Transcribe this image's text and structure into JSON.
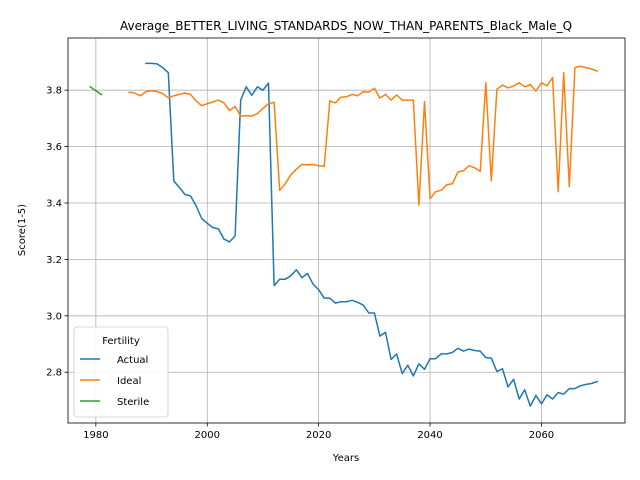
{
  "chart_data": {
    "type": "line",
    "title": "Average_BETTER_LIVING_STANDARDS_NOW_THAN_PARENTS_Black_Male_Q",
    "xlabel": "Years",
    "ylabel": "Score(1-5)",
    "xlim": [
      1975,
      2075
    ],
    "ylim": [
      2.62,
      3.985
    ],
    "x_ticks": [
      1980,
      2000,
      2020,
      2040,
      2060
    ],
    "x_tick_labels": [
      "1980",
      "2000",
      "2020",
      "2040",
      "2060"
    ],
    "y_ticks": [
      2.8,
      3.0,
      3.2,
      3.4,
      3.6,
      3.8
    ],
    "y_tick_labels": [
      "2.8",
      "3.0",
      "3.2",
      "3.4",
      "3.6",
      "3.8"
    ],
    "grid": true,
    "legend": {
      "title": "Fertility",
      "placement": "lower-left"
    },
    "series": [
      {
        "name": "Actual",
        "color": "#1f77b4",
        "x": [
          1989,
          1990,
          1991,
          1992,
          1993,
          1994,
          1995,
          1996,
          1997,
          1998,
          1999,
          2000,
          2001,
          2002,
          2003,
          2004,
          2005,
          2006,
          2007,
          2008,
          2009,
          2010,
          2011,
          2012,
          2013,
          2014,
          2015,
          2016,
          2017,
          2018,
          2019,
          2020,
          2021,
          2022,
          2023,
          2024,
          2025,
          2026,
          2027,
          2028,
          2029,
          2030,
          2031,
          2032,
          2033,
          2034,
          2035,
          2036,
          2037,
          2038,
          2039,
          2040,
          2041,
          2042,
          2043,
          2044,
          2045,
          2046,
          2047,
          2048,
          2049,
          2050,
          2051,
          2052,
          2053,
          2054,
          2055,
          2056,
          2057,
          2058,
          2059,
          2060,
          2061,
          2062,
          2063,
          2064,
          2065,
          2066,
          2067,
          2068,
          2069,
          2070
        ],
        "values": [
          3.895,
          3.895,
          3.893,
          3.88,
          3.862,
          3.478,
          3.455,
          3.43,
          3.425,
          3.39,
          3.345,
          3.328,
          3.313,
          3.308,
          3.272,
          3.262,
          3.283,
          3.765,
          3.812,
          3.782,
          3.812,
          3.8,
          3.825,
          3.107,
          3.13,
          3.13,
          3.142,
          3.163,
          3.135,
          3.15,
          3.112,
          3.093,
          3.063,
          3.063,
          3.045,
          3.05,
          3.05,
          3.055,
          3.048,
          3.038,
          3.01,
          3.01,
          2.928,
          2.942,
          2.845,
          2.865,
          2.795,
          2.825,
          2.787,
          2.83,
          2.81,
          2.848,
          2.848,
          2.865,
          2.865,
          2.87,
          2.885,
          2.875,
          2.882,
          2.877,
          2.875,
          2.852,
          2.85,
          2.803,
          2.812,
          2.748,
          2.775,
          2.705,
          2.738,
          2.68,
          2.718,
          2.688,
          2.72,
          2.705,
          2.728,
          2.722,
          2.742,
          2.742,
          2.752,
          2.757,
          2.76,
          2.767
        ]
      },
      {
        "name": "Ideal",
        "color": "#ff7f0e",
        "x": [
          1986,
          1987,
          1988,
          1989,
          1990,
          1991,
          1992,
          1993,
          1994,
          1995,
          1996,
          1997,
          1998,
          1999,
          2000,
          2001,
          2002,
          2003,
          2004,
          2005,
          2006,
          2007,
          2008,
          2009,
          2010,
          2011,
          2012,
          2013,
          2014,
          2015,
          2016,
          2017,
          2018,
          2019,
          2020,
          2021,
          2022,
          2023,
          2024,
          2025,
          2026,
          2027,
          2028,
          2029,
          2030,
          2031,
          2032,
          2033,
          2034,
          2035,
          2036,
          2037,
          2038,
          2039,
          2040,
          2041,
          2042,
          2043,
          2044,
          2045,
          2046,
          2047,
          2048,
          2049,
          2050,
          2051,
          2052,
          2053,
          2054,
          2055,
          2056,
          2057,
          2058,
          2059,
          2060,
          2061,
          2062,
          2063,
          2064,
          2065,
          2066,
          2067,
          2068,
          2069,
          2070
        ],
        "values": [
          3.793,
          3.79,
          3.78,
          3.795,
          3.798,
          3.795,
          3.788,
          3.773,
          3.78,
          3.785,
          3.79,
          3.785,
          3.762,
          3.745,
          3.752,
          3.758,
          3.765,
          3.755,
          3.728,
          3.742,
          3.708,
          3.71,
          3.708,
          3.717,
          3.735,
          3.752,
          3.757,
          3.445,
          3.468,
          3.5,
          3.52,
          3.537,
          3.535,
          3.537,
          3.532,
          3.53,
          3.762,
          3.755,
          3.775,
          3.777,
          3.785,
          3.78,
          3.795,
          3.793,
          3.807,
          3.772,
          3.785,
          3.765,
          3.783,
          3.765,
          3.765,
          3.765,
          3.393,
          3.76,
          3.415,
          3.44,
          3.445,
          3.465,
          3.468,
          3.51,
          3.515,
          3.532,
          3.525,
          3.512,
          3.826,
          3.478,
          3.803,
          3.818,
          3.808,
          3.815,
          3.826,
          3.812,
          3.82,
          3.797,
          3.826,
          3.815,
          3.845,
          3.44,
          3.862,
          3.458,
          3.88,
          3.885,
          3.88,
          3.875,
          3.868
        ]
      },
      {
        "name": "Sterile",
        "color": "#2ca02c",
        "x": [
          1979,
          1980,
          1981
        ],
        "values": [
          3.812,
          3.798,
          3.785
        ]
      }
    ]
  }
}
